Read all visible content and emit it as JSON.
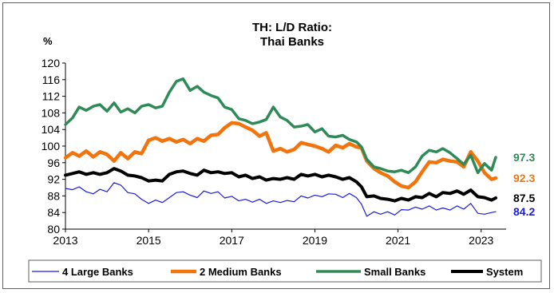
{
  "chart_data": {
    "type": "line",
    "title_lines": [
      "TH: L/D Ratio:",
      "Thai Banks"
    ],
    "ylabel": "%",
    "xlabel": "",
    "ylim": [
      80,
      120
    ],
    "yticks": [
      80,
      84,
      88,
      92,
      96,
      100,
      104,
      108,
      112,
      116,
      120
    ],
    "xlim": [
      2013,
      2023.6
    ],
    "xticks": [
      2013,
      2015,
      2017,
      2019,
      2021,
      2023
    ],
    "grid": false,
    "legend_position": "bottom",
    "series": [
      {
        "name": "4 Large Banks",
        "color": "#1a1ae6",
        "line_width": 1.2,
        "end_label": "84.2",
        "x": [
          2013.0,
          2013.17,
          2013.33,
          2013.5,
          2013.67,
          2013.83,
          2014.0,
          2014.17,
          2014.33,
          2014.5,
          2014.67,
          2014.83,
          2015.0,
          2015.17,
          2015.33,
          2015.5,
          2015.67,
          2015.83,
          2016.0,
          2016.17,
          2016.33,
          2016.5,
          2016.67,
          2016.83,
          2017.0,
          2017.17,
          2017.33,
          2017.5,
          2017.67,
          2017.83,
          2018.0,
          2018.17,
          2018.33,
          2018.5,
          2018.67,
          2018.83,
          2019.0,
          2019.17,
          2019.33,
          2019.5,
          2019.67,
          2019.83,
          2020.0,
          2020.12,
          2020.25,
          2020.42,
          2020.58,
          2020.75,
          2020.92,
          2021.08,
          2021.25,
          2021.42,
          2021.58,
          2021.75,
          2021.92,
          2022.08,
          2022.25,
          2022.42,
          2022.58,
          2022.75,
          2022.92,
          2023.08,
          2023.25,
          2023.35
        ],
        "y": [
          89.8,
          89.5,
          90.2,
          89.0,
          88.5,
          89.6,
          89.0,
          91.2,
          90.6,
          88.8,
          88.5,
          87.2,
          86.2,
          87.0,
          86.4,
          87.6,
          88.8,
          89.0,
          88.2,
          87.6,
          89.2,
          88.6,
          89.0,
          87.5,
          87.9,
          86.8,
          87.2,
          86.5,
          87.2,
          86.2,
          86.8,
          86.4,
          86.9,
          86.6,
          88.0,
          87.5,
          88.2,
          87.8,
          88.5,
          88.4,
          87.6,
          88.6,
          87.6,
          86.0,
          83.1,
          84.2,
          83.6,
          84.2,
          83.4,
          84.7,
          84.6,
          85.3,
          84.8,
          85.6,
          84.6,
          85.1,
          84.6,
          85.6,
          84.8,
          86.2,
          83.8,
          83.6,
          84.0,
          84.2
        ]
      },
      {
        "name": "2 Medium Banks",
        "color": "#f2740d",
        "line_width": 4.5,
        "end_label": "92.3",
        "x": [
          2013.0,
          2013.17,
          2013.33,
          2013.5,
          2013.67,
          2013.83,
          2014.0,
          2014.17,
          2014.33,
          2014.5,
          2014.67,
          2014.83,
          2015.0,
          2015.17,
          2015.33,
          2015.5,
          2015.67,
          2015.83,
          2016.0,
          2016.17,
          2016.33,
          2016.5,
          2016.67,
          2016.83,
          2017.0,
          2017.17,
          2017.33,
          2017.5,
          2017.67,
          2017.83,
          2018.0,
          2018.17,
          2018.33,
          2018.5,
          2018.67,
          2018.83,
          2019.0,
          2019.17,
          2019.33,
          2019.5,
          2019.67,
          2019.83,
          2020.0,
          2020.12,
          2020.25,
          2020.42,
          2020.58,
          2020.75,
          2020.92,
          2021.08,
          2021.25,
          2021.42,
          2021.58,
          2021.75,
          2021.92,
          2022.08,
          2022.25,
          2022.42,
          2022.58,
          2022.75,
          2022.92,
          2023.08,
          2023.25,
          2023.35
        ],
        "y": [
          97.2,
          98.4,
          97.6,
          98.8,
          97.4,
          98.6,
          98.0,
          96.4,
          98.4,
          97.0,
          98.6,
          98.2,
          101.4,
          102.0,
          101.2,
          101.8,
          101.0,
          101.6,
          100.6,
          101.8,
          101.2,
          102.6,
          102.8,
          104.4,
          105.6,
          105.4,
          104.6,
          103.8,
          102.4,
          103.2,
          98.8,
          99.4,
          98.6,
          99.2,
          100.8,
          100.4,
          100.0,
          99.4,
          98.6,
          100.2,
          99.6,
          100.6,
          99.8,
          99.6,
          96.4,
          94.6,
          93.6,
          92.8,
          91.4,
          90.4,
          90.0,
          91.4,
          93.8,
          96.2,
          96.0,
          96.8,
          96.4,
          96.2,
          95.0,
          98.6,
          96.4,
          93.6,
          92.0,
          92.3
        ]
      },
      {
        "name": "Small Banks",
        "color": "#2e8b57",
        "line_width": 3.5,
        "end_label": "97.3",
        "x": [
          2013.0,
          2013.17,
          2013.33,
          2013.5,
          2013.67,
          2013.83,
          2014.0,
          2014.17,
          2014.33,
          2014.5,
          2014.67,
          2014.83,
          2015.0,
          2015.17,
          2015.33,
          2015.5,
          2015.67,
          2015.83,
          2016.0,
          2016.17,
          2016.33,
          2016.5,
          2016.67,
          2016.83,
          2017.0,
          2017.17,
          2017.33,
          2017.5,
          2017.67,
          2017.83,
          2018.0,
          2018.17,
          2018.33,
          2018.5,
          2018.67,
          2018.83,
          2019.0,
          2019.17,
          2019.33,
          2019.5,
          2019.67,
          2019.83,
          2020.0,
          2020.12,
          2020.25,
          2020.42,
          2020.58,
          2020.75,
          2020.92,
          2021.08,
          2021.25,
          2021.42,
          2021.58,
          2021.75,
          2021.92,
          2022.08,
          2022.25,
          2022.42,
          2022.58,
          2022.75,
          2022.92,
          2023.08,
          2023.25,
          2023.35
        ],
        "y": [
          105.2,
          106.8,
          109.4,
          108.6,
          109.6,
          110.0,
          108.4,
          110.4,
          108.2,
          109.0,
          108.0,
          109.6,
          110.0,
          109.2,
          109.6,
          113.0,
          115.6,
          116.2,
          113.4,
          114.4,
          113.0,
          112.2,
          111.6,
          109.4,
          108.8,
          106.6,
          106.2,
          105.4,
          105.8,
          106.4,
          109.4,
          107.0,
          106.2,
          104.6,
          104.8,
          105.2,
          103.4,
          104.2,
          102.4,
          102.2,
          102.6,
          101.6,
          101.0,
          99.8,
          96.8,
          95.0,
          94.6,
          94.0,
          93.8,
          94.2,
          93.6,
          95.0,
          97.6,
          99.0,
          98.6,
          99.4,
          98.4,
          97.0,
          95.6,
          97.8,
          93.6,
          95.8,
          94.2,
          97.3
        ]
      },
      {
        "name": "System",
        "color": "#000000",
        "line_width": 4,
        "end_label": "87.5",
        "x": [
          2013.0,
          2013.17,
          2013.33,
          2013.5,
          2013.67,
          2013.83,
          2014.0,
          2014.17,
          2014.33,
          2014.5,
          2014.67,
          2014.83,
          2015.0,
          2015.17,
          2015.33,
          2015.5,
          2015.67,
          2015.83,
          2016.0,
          2016.17,
          2016.33,
          2016.5,
          2016.67,
          2016.83,
          2017.0,
          2017.17,
          2017.33,
          2017.5,
          2017.67,
          2017.83,
          2018.0,
          2018.17,
          2018.33,
          2018.5,
          2018.67,
          2018.83,
          2019.0,
          2019.17,
          2019.33,
          2019.5,
          2019.67,
          2019.83,
          2020.0,
          2020.12,
          2020.25,
          2020.42,
          2020.58,
          2020.75,
          2020.92,
          2021.08,
          2021.25,
          2021.42,
          2021.58,
          2021.75,
          2021.92,
          2022.08,
          2022.25,
          2022.42,
          2022.58,
          2022.75,
          2022.92,
          2023.08,
          2023.25,
          2023.35
        ],
        "y": [
          93.0,
          93.4,
          93.8,
          93.2,
          93.6,
          93.2,
          93.6,
          94.6,
          94.0,
          93.0,
          92.8,
          92.4,
          91.6,
          91.8,
          91.6,
          93.2,
          93.8,
          94.0,
          93.4,
          93.0,
          94.2,
          93.6,
          93.8,
          93.4,
          93.6,
          92.6,
          93.0,
          92.2,
          92.6,
          91.8,
          92.2,
          92.0,
          92.4,
          92.0,
          93.2,
          92.8,
          93.2,
          92.6,
          93.0,
          92.6,
          92.0,
          92.4,
          91.4,
          90.2,
          87.8,
          88.0,
          87.4,
          87.2,
          86.8,
          87.4,
          87.0,
          87.8,
          87.6,
          88.6,
          87.8,
          88.8,
          88.6,
          89.2,
          88.4,
          89.4,
          87.8,
          87.6,
          87.0,
          87.5
        ]
      }
    ]
  }
}
